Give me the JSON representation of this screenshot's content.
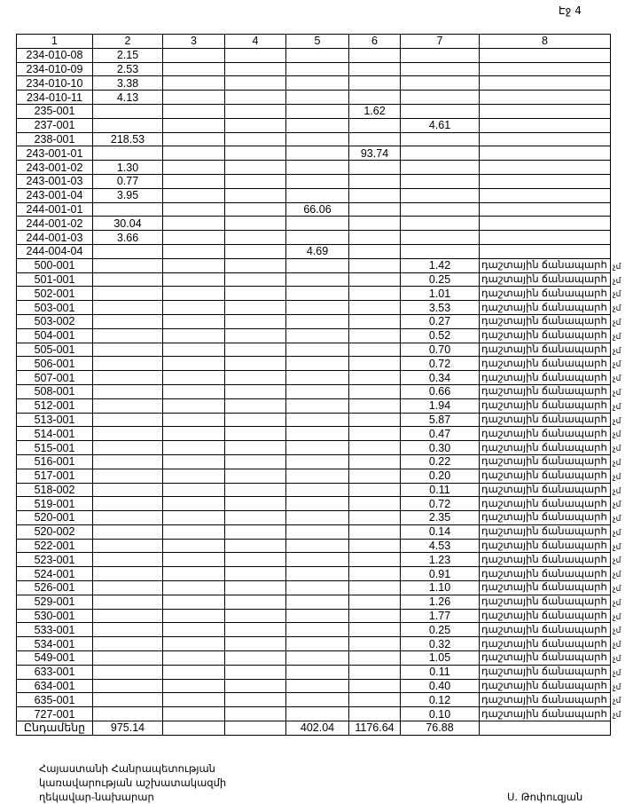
{
  "page_label": "Էջ 4",
  "columns": [
    "1",
    "2",
    "3",
    "4",
    "5",
    "6",
    "7",
    "8"
  ],
  "rows": [
    [
      "234-010-08",
      "2.15",
      "",
      "",
      "",
      "",
      "",
      ""
    ],
    [
      "234-010-09",
      "2.53",
      "",
      "",
      "",
      "",
      "",
      ""
    ],
    [
      "234-010-10",
      "3.38",
      "",
      "",
      "",
      "",
      "",
      ""
    ],
    [
      "234-010-11",
      "4.13",
      "",
      "",
      "",
      "",
      "",
      ""
    ],
    [
      "235-001",
      "",
      "",
      "",
      "",
      "1.62",
      "",
      ""
    ],
    [
      "237-001",
      "",
      "",
      "",
      "",
      "",
      "4.61",
      ""
    ],
    [
      "238-001",
      "218.53",
      "",
      "",
      "",
      "",
      "",
      ""
    ],
    [
      "243-001-01",
      "",
      "",
      "",
      "",
      "93.74",
      "",
      ""
    ],
    [
      "243-001-02",
      "1.30",
      "",
      "",
      "",
      "",
      "",
      ""
    ],
    [
      "243-001-03",
      "0.77",
      "",
      "",
      "",
      "",
      "",
      ""
    ],
    [
      "243-001-04",
      "3.95",
      "",
      "",
      "",
      "",
      "",
      ""
    ],
    [
      "244-001-01",
      "",
      "",
      "",
      "66.06",
      "",
      "",
      ""
    ],
    [
      "244-001-02",
      "30.04",
      "",
      "",
      "",
      "",
      "",
      ""
    ],
    [
      "244-001-03",
      "3.66",
      "",
      "",
      "",
      "",
      "",
      ""
    ],
    [
      "244-004-04",
      "",
      "",
      "",
      "4.69",
      "",
      "",
      ""
    ],
    [
      "500-001",
      "",
      "",
      "",
      "",
      "",
      "1.42",
      "դաշտային ճանապարհ"
    ],
    [
      "501-001",
      "",
      "",
      "",
      "",
      "",
      "0.25",
      "դաշտային ճանապարհ"
    ],
    [
      "502-001",
      "",
      "",
      "",
      "",
      "",
      "1.01",
      "դաշտային ճանապարհ"
    ],
    [
      "503-001",
      "",
      "",
      "",
      "",
      "",
      "3.53",
      "դաշտային ճանապարհ"
    ],
    [
      "503-002",
      "",
      "",
      "",
      "",
      "",
      "0.27",
      "դաշտային ճանապարհ"
    ],
    [
      "504-001",
      "",
      "",
      "",
      "",
      "",
      "0.52",
      "դաշտային ճանապարհ"
    ],
    [
      "505-001",
      "",
      "",
      "",
      "",
      "",
      "0.70",
      "դաշտային ճանապարհ"
    ],
    [
      "506-001",
      "",
      "",
      "",
      "",
      "",
      "0.72",
      "դաշտային ճանապարհ"
    ],
    [
      "507-001",
      "",
      "",
      "",
      "",
      "",
      "0.34",
      "դաշտային ճանապարհ"
    ],
    [
      "508-001",
      "",
      "",
      "",
      "",
      "",
      "0.66",
      "դաշտային ճանապարհ"
    ],
    [
      "512-001",
      "",
      "",
      "",
      "",
      "",
      "1.94",
      "դաշտային ճանապարհ"
    ],
    [
      "513-001",
      "",
      "",
      "",
      "",
      "",
      "5.87",
      "դաշտային ճանապարհ"
    ],
    [
      "514-001",
      "",
      "",
      "",
      "",
      "",
      "0.47",
      "դաշտային ճանապարհ"
    ],
    [
      "515-001",
      "",
      "",
      "",
      "",
      "",
      "0.30",
      "դաշտային ճանապարհ"
    ],
    [
      "516-001",
      "",
      "",
      "",
      "",
      "",
      "0.22",
      "դաշտային ճանապարհ"
    ],
    [
      "517-001",
      "",
      "",
      "",
      "",
      "",
      "0.20",
      "դաշտային ճանապարհ"
    ],
    [
      "518-002",
      "",
      "",
      "",
      "",
      "",
      "0.11",
      "դաշտային ճանապարհ"
    ],
    [
      "519-001",
      "",
      "",
      "",
      "",
      "",
      "0.72",
      "դաշտային ճանապարհ"
    ],
    [
      "520-001",
      "",
      "",
      "",
      "",
      "",
      "2.35",
      "դաշտային ճանապարհ"
    ],
    [
      "520-002",
      "",
      "",
      "",
      "",
      "",
      "0.14",
      "դաշտային ճանապարհ"
    ],
    [
      "522-001",
      "",
      "",
      "",
      "",
      "",
      "4.53",
      "դաշտային ճանապարհ"
    ],
    [
      "523-001",
      "",
      "",
      "",
      "",
      "",
      "1.23",
      "դաշտային ճանապարհ"
    ],
    [
      "524-001",
      "",
      "",
      "",
      "",
      "",
      "0.91",
      "դաշտային ճանապարհ"
    ],
    [
      "526-001",
      "",
      "",
      "",
      "",
      "",
      "1.10",
      "դաշտային ճանապարհ"
    ],
    [
      "529-001",
      "",
      "",
      "",
      "",
      "",
      "1.26",
      "դաշտային ճանապարհ"
    ],
    [
      "530-001",
      "",
      "",
      "",
      "",
      "",
      "1.77",
      "դաշտային ճանապարհ"
    ],
    [
      "533-001",
      "",
      "",
      "",
      "",
      "",
      "0.25",
      "դաշտային ճանապարհ"
    ],
    [
      "534-001",
      "",
      "",
      "",
      "",
      "",
      "0.32",
      "դաշտային ճանապարհ"
    ],
    [
      "549-001",
      "",
      "",
      "",
      "",
      "",
      "1.05",
      "դաշտային ճանապարհ"
    ],
    [
      "633-001",
      "",
      "",
      "",
      "",
      "",
      "0.11",
      "դաշտային ճանապարհ"
    ],
    [
      "634-001",
      "",
      "",
      "",
      "",
      "",
      "0.40",
      "դաշտային ճանապարհ"
    ],
    [
      "635-001",
      "",
      "",
      "",
      "",
      "",
      "0.12",
      "դաշտային ճանապարհ"
    ],
    [
      "727-001",
      "",
      "",
      "",
      "",
      "",
      "0.10",
      "դաշտային ճանապարհ"
    ]
  ],
  "note_suffix": "չմ",
  "total": [
    "Ընդամենը",
    "975.14",
    "",
    "",
    "402.04",
    "1176.64",
    "76.88",
    ""
  ],
  "footer": {
    "position_lines": [
      "Հայաստանի Հանրապետության",
      "կառավարության աշխատակազմի",
      "ղեկավար-նախարար"
    ],
    "signatory": "Ս. Թոփուզյան"
  }
}
